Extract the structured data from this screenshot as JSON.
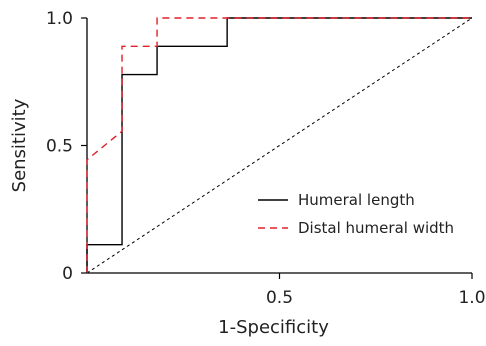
{
  "chart_data": {
    "type": "line",
    "title": "",
    "xlabel": "1-Specificity",
    "ylabel": "Sensitivity",
    "xlim": [
      0,
      1.0
    ],
    "ylim": [
      0,
      1.0
    ],
    "x_ticks": [
      0.5,
      1.0
    ],
    "x_tick_labels": [
      "0.5",
      "1.0"
    ],
    "y_ticks": [
      0,
      0.5,
      1.0
    ],
    "y_tick_labels": [
      "0",
      "0.5",
      "1.0"
    ],
    "grid": false,
    "legend_placement": "bottom-right",
    "reference_line": {
      "style": "dashed",
      "color": "#000000",
      "points": [
        [
          0,
          0
        ],
        [
          1,
          1
        ]
      ]
    },
    "series": [
      {
        "name": "Humeral length",
        "color": "#000000",
        "style": "solid",
        "points": [
          [
            0,
            0
          ],
          [
            0,
            0.111
          ],
          [
            0.091,
            0.111
          ],
          [
            0.091,
            0.778
          ],
          [
            0.182,
            0.778
          ],
          [
            0.182,
            0.889
          ],
          [
            0.364,
            0.889
          ],
          [
            0.364,
            1.0
          ],
          [
            1.0,
            1.0
          ]
        ]
      },
      {
        "name": "Distal humeral width",
        "color": "#e0202a",
        "style": "dashed",
        "points": [
          [
            0,
            0
          ],
          [
            0,
            0.444
          ],
          [
            0.091,
            0.556
          ],
          [
            0.091,
            0.889
          ],
          [
            0.182,
            0.889
          ],
          [
            0.182,
            1.0
          ],
          [
            1.0,
            1.0
          ]
        ]
      }
    ]
  }
}
